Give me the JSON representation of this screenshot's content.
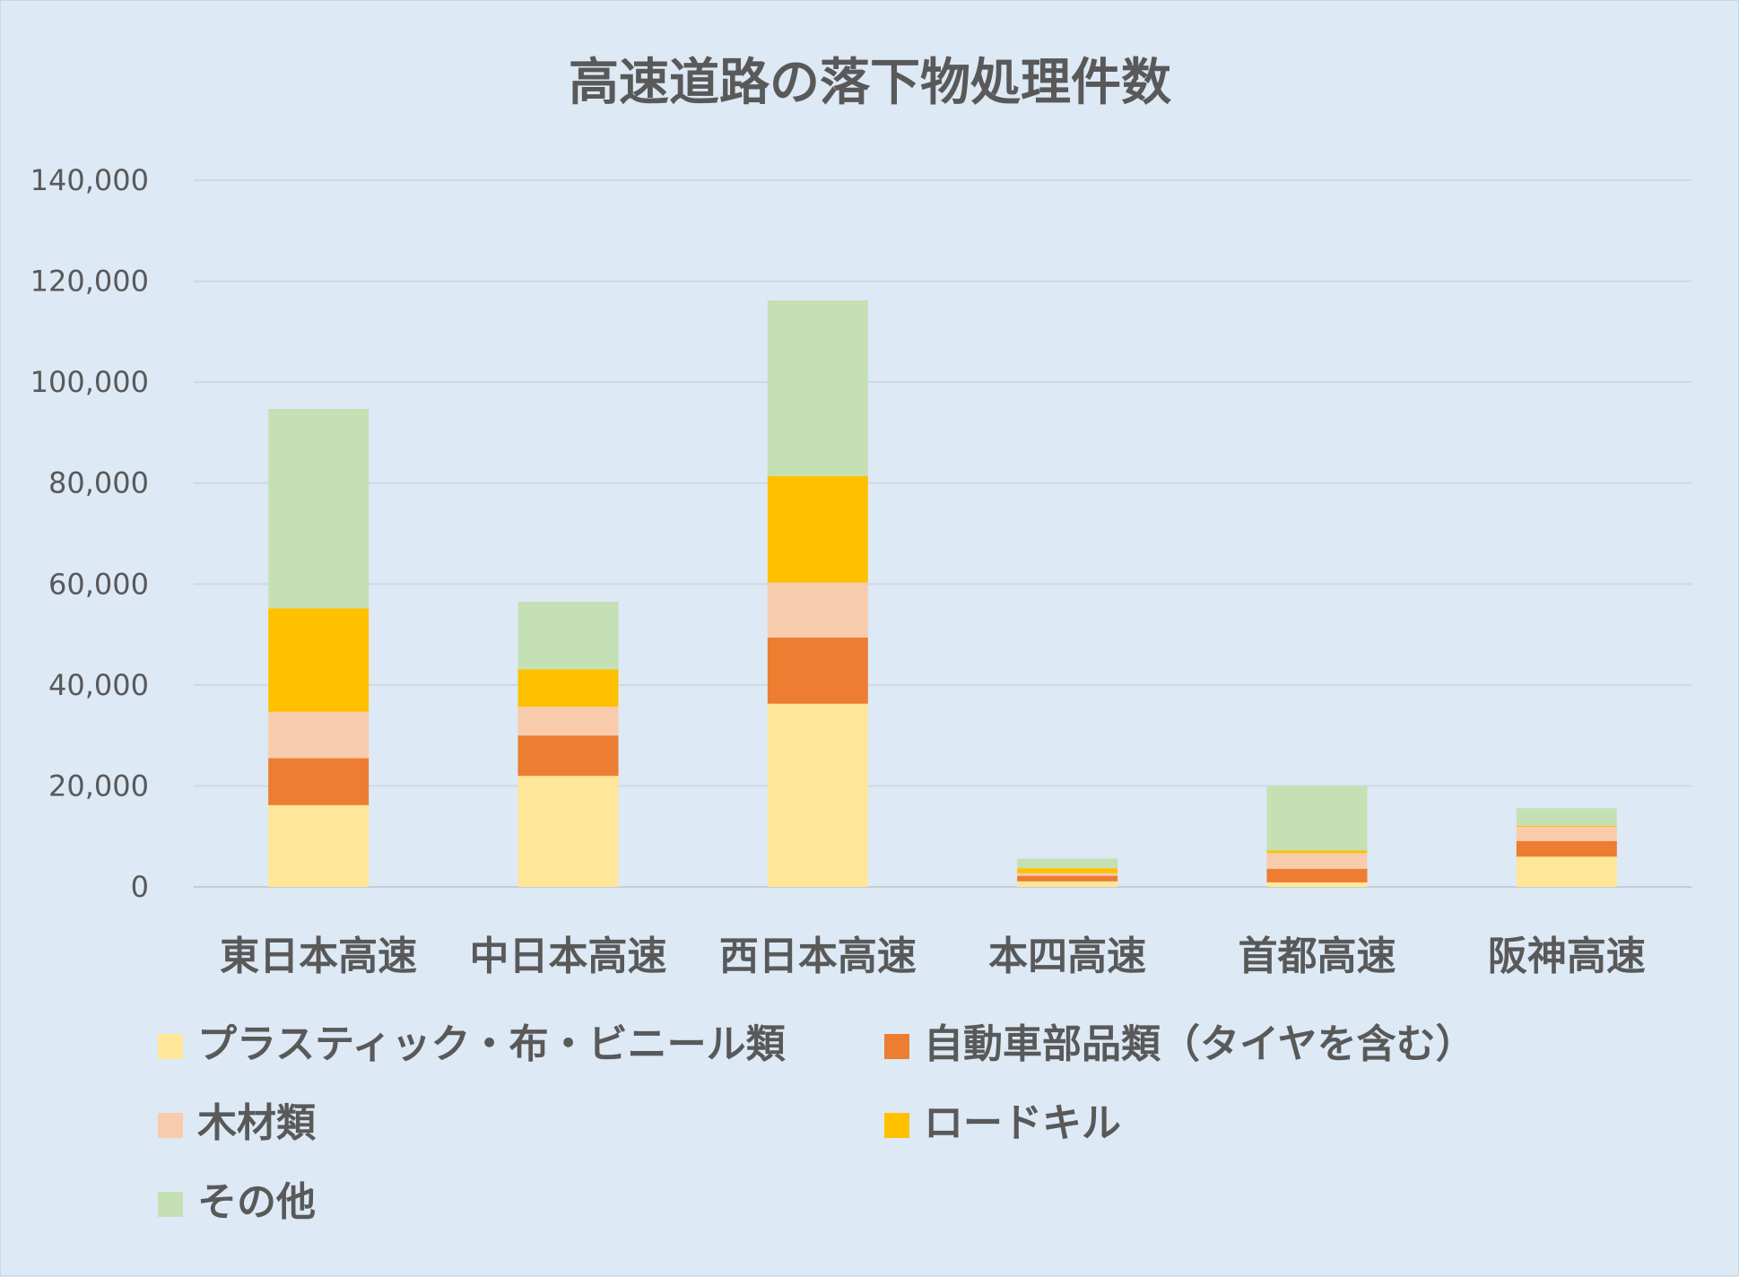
{
  "chart_data": {
    "type": "bar",
    "stacked": true,
    "title": "高速道路の落下物処理件数",
    "categories": [
      "東日本高速",
      "中日本高速",
      "西日本高速",
      "本四高速",
      "首都高速",
      "阪神高速"
    ],
    "series": [
      {
        "name": "プラスティック・布・ビニール類",
        "color": "#ffe699",
        "values": [
          16200,
          22000,
          36300,
          1100,
          900,
          6000
        ]
      },
      {
        "name": "自動車部品類（タイヤを含む）",
        "color": "#ed7d31",
        "values": [
          9300,
          8000,
          13100,
          1100,
          2700,
          3100
        ]
      },
      {
        "name": "木材類",
        "color": "#f8cbad",
        "values": [
          9200,
          5700,
          10900,
          500,
          3100,
          2800
        ]
      },
      {
        "name": "ロードキル",
        "color": "#ffc000",
        "values": [
          20500,
          7400,
          21100,
          1000,
          500,
          200
        ]
      },
      {
        "name": "その他",
        "color": "#c5e0b4",
        "values": [
          39500,
          13400,
          34800,
          1900,
          12800,
          3500
        ]
      }
    ],
    "ylim": [
      0,
      140000
    ],
    "yticks": [
      "0",
      "20,000",
      "40,000",
      "60,000",
      "80,000",
      "100,000",
      "120,000",
      "140,000"
    ],
    "grid": true,
    "legend_position": "bottom"
  }
}
